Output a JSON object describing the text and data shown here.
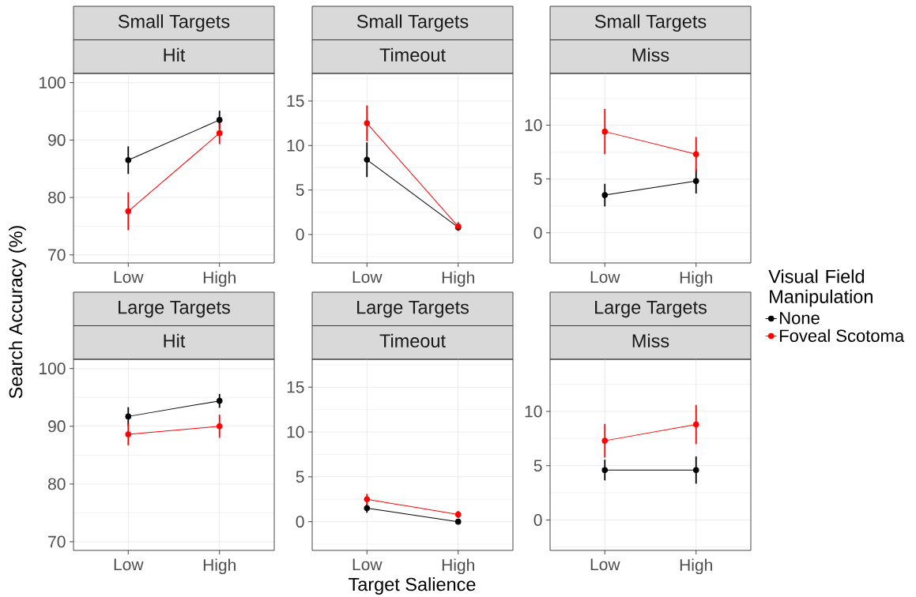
{
  "chart_data": [
    {
      "type": "line",
      "title": "Small Targets",
      "subtitle": "Hit",
      "ylabel": "Search Accuracy (%)",
      "categories": [
        "Low",
        "High"
      ],
      "series": [
        {
          "color": "#000000",
          "values": [
            86.5,
            93.5
          ],
          "errors": [
            2.4,
            1.6
          ]
        },
        {
          "color": "#ff0000",
          "values": [
            77.6,
            91.2
          ],
          "errors": [
            3.3,
            1.9
          ]
        }
      ],
      "ylim": [
        68.6,
        101.6
      ],
      "yticks": [
        70,
        80,
        90,
        100
      ],
      "grid": true,
      "marker": "circle"
    },
    {
      "type": "line",
      "title": "Small Targets",
      "subtitle": "Timeout",
      "categories": [
        "Low",
        "High"
      ],
      "series": [
        {
          "color": "#000000",
          "values": [
            8.4,
            0.8
          ],
          "errors": [
            1.95,
            null
          ]
        },
        {
          "color": "#ff0000",
          "values": [
            12.5,
            0.9
          ],
          "errors": [
            2.0,
            0.5
          ]
        }
      ],
      "ylim": [
        -3.2,
        18.1
      ],
      "yticks": [
        0,
        5,
        10,
        15
      ],
      "grid": true,
      "marker": "circle"
    },
    {
      "type": "line",
      "title": "Small Targets",
      "subtitle": "Miss",
      "categories": [
        "Low",
        "High"
      ],
      "legend": "right",
      "legend_title": "Visual Field Manipulation",
      "series": [
        {
          "name": "None",
          "color": "#000000",
          "values": [
            3.5,
            4.8
          ],
          "errors": [
            1.05,
            1.15
          ]
        },
        {
          "name": "Foveal Scotoma",
          "color": "#ff0000",
          "values": [
            9.4,
            7.3
          ],
          "errors": [
            2.1,
            1.6
          ]
        }
      ],
      "ylim": [
        -2.8,
        14.8
      ],
      "yticks": [
        0,
        5,
        10
      ],
      "grid": true,
      "marker": "circle"
    },
    {
      "type": "line",
      "title": "Large Targets",
      "subtitle": "Hit",
      "categories": [
        "Low",
        "High"
      ],
      "series": [
        {
          "color": "#000000",
          "values": [
            91.7,
            94.4
          ],
          "errors": [
            1.6,
            1.2
          ]
        },
        {
          "color": "#ff0000",
          "values": [
            88.6,
            90.0
          ],
          "errors": [
            1.9,
            2.0
          ]
        }
      ],
      "ylim": [
        68.5,
        101.6
      ],
      "yticks": [
        70,
        80,
        90,
        100
      ],
      "grid": true,
      "marker": "circle"
    },
    {
      "type": "line",
      "title": "Large Targets",
      "subtitle": "Timeout",
      "xlabel": "Target Salience",
      "categories": [
        "Low",
        "High"
      ],
      "series": [
        {
          "color": "#000000",
          "values": [
            1.5,
            0.0
          ],
          "errors": [
            0.5,
            null
          ]
        },
        {
          "color": "#ff0000",
          "values": [
            2.5,
            0.8
          ],
          "errors": [
            0.6,
            0.4
          ]
        }
      ],
      "ylim": [
        -3.2,
        18.1
      ],
      "yticks": [
        0,
        5,
        10,
        15
      ],
      "grid": true,
      "marker": "circle"
    },
    {
      "type": "line",
      "title": "Large Targets",
      "subtitle": "Miss",
      "categories": [
        "Low",
        "High"
      ],
      "series": [
        {
          "color": "#000000",
          "values": [
            4.6,
            4.6
          ],
          "errors": [
            0.95,
            1.25
          ]
        },
        {
          "color": "#ff0000",
          "values": [
            7.3,
            8.8
          ],
          "errors": [
            1.55,
            1.8
          ]
        }
      ],
      "ylim": [
        -2.8,
        14.8
      ],
      "yticks": [
        0,
        5,
        10
      ],
      "grid": true,
      "marker": "circle"
    }
  ]
}
